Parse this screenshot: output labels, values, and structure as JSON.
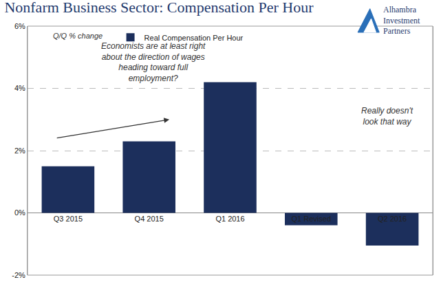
{
  "chart_data": {
    "type": "bar",
    "title": "Nonfarm Business Sector: Compensation Per Hour",
    "logo": "Alhambra Investment Partners",
    "categories": [
      "Q3 2015",
      "Q4 2015",
      "Q1 2016",
      "Q1 Revised",
      "Q2 2016"
    ],
    "series": [
      {
        "name": "Real Compensation Per Hour",
        "color": "#1c2f5c",
        "values": [
          1.5,
          2.3,
          4.2,
          -0.4,
          -1.05
        ]
      }
    ],
    "ylim": [
      -2,
      6
    ],
    "yticks": [
      {
        "value": -2,
        "label": "-2%"
      },
      {
        "value": 0,
        "label": "0%"
      },
      {
        "value": 2,
        "label": "2%"
      },
      {
        "value": 4,
        "label": "4%"
      },
      {
        "value": 6,
        "label": "6%"
      }
    ],
    "grid": true,
    "legend": "top",
    "annotations": [
      {
        "lines": [
          "Q/Q % change"
        ]
      },
      {
        "lines": [
          "Economists are at least right",
          "about the direction of wages",
          "heading toward full",
          "employment?"
        ]
      },
      {
        "lines": [
          "Really doesn't",
          "look that way"
        ]
      }
    ]
  }
}
